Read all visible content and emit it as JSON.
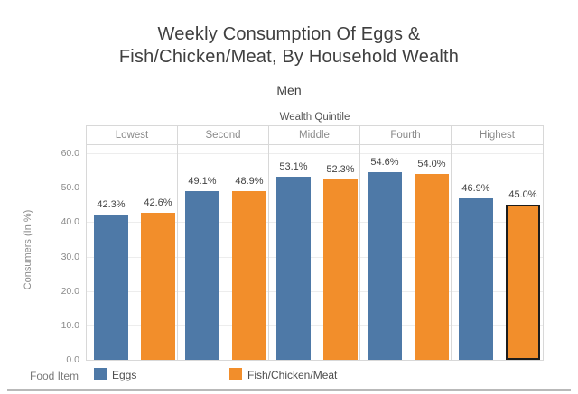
{
  "chart_data": {
    "type": "bar",
    "title_lines": [
      "Weekly Consumption Of Eggs &",
      "Fish/Chicken/Meat, By Household Wealth"
    ],
    "subtitle": "Men",
    "group_axis_label": "Wealth Quintile",
    "categories": [
      "Lowest",
      "Second",
      "Middle",
      "Fourth",
      "Highest"
    ],
    "series": [
      {
        "name": "Eggs",
        "color": "#4e79a7",
        "values": [
          42.3,
          49.1,
          53.1,
          54.6,
          46.9
        ],
        "labels": [
          "42.3%",
          "49.1%",
          "53.1%",
          "54.6%",
          "46.9%"
        ]
      },
      {
        "name": "Fish/Chicken/Meat",
        "color": "#f28e2b",
        "values": [
          42.6,
          48.9,
          52.3,
          54.0,
          45.0
        ],
        "labels": [
          "42.6%",
          "48.9%",
          "52.3%",
          "54.0%",
          "45.0%"
        ]
      }
    ],
    "ylabel": "Consumers (In %)",
    "ylim": [
      0,
      60
    ],
    "yticks": [
      {
        "value": 0,
        "label": "0.0"
      },
      {
        "value": 10,
        "label": "10.0"
      },
      {
        "value": 20,
        "label": "20.0"
      },
      {
        "value": 30,
        "label": "30.0"
      },
      {
        "value": 40,
        "label": "40.0"
      },
      {
        "value": 50,
        "label": "50.0"
      },
      {
        "value": 60,
        "label": "60.0"
      }
    ],
    "grid": true,
    "legend_position": "bottom",
    "highlight": {
      "series_index": 1,
      "category_index": 4
    }
  },
  "legend": {
    "title": "Food Item",
    "items": [
      {
        "label": "Eggs",
        "color": "#4e79a7"
      },
      {
        "label": "Fish/Chicken/Meat",
        "color": "#f28e2b"
      }
    ]
  }
}
